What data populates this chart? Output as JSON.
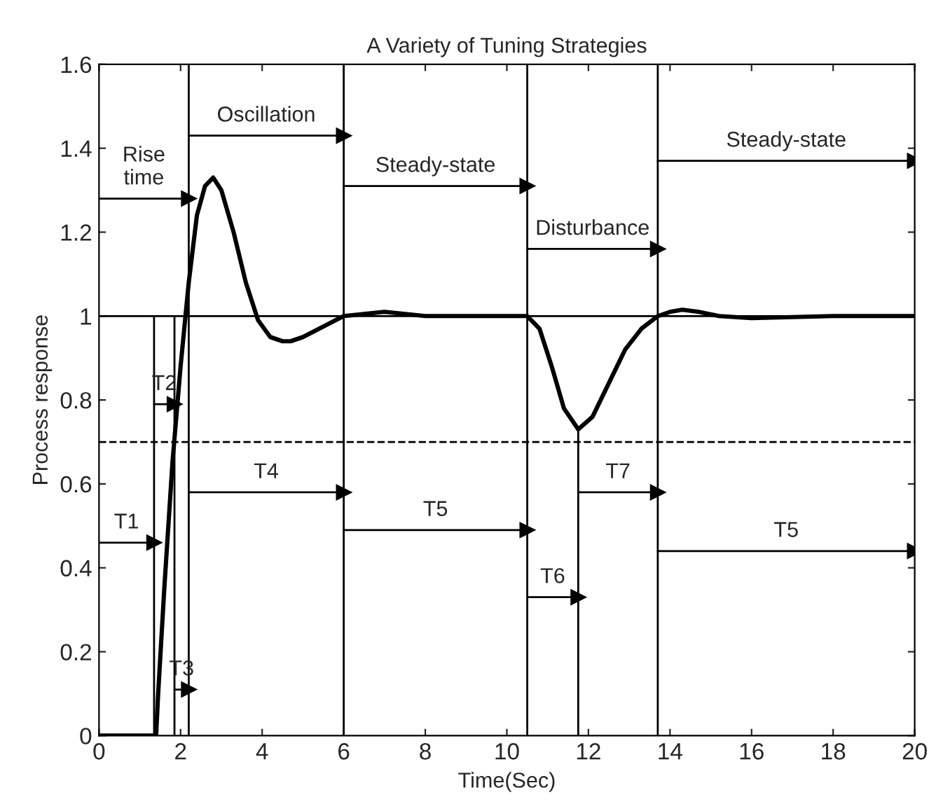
{
  "chart_data": {
    "type": "line",
    "title": "A Variety of Tuning Strategies",
    "xlabel": "Time(Sec)",
    "ylabel": "Process response",
    "xlim": [
      0,
      20
    ],
    "ylim": [
      0,
      1.6
    ],
    "xticks": [
      0,
      2,
      4,
      6,
      8,
      10,
      12,
      14,
      16,
      18,
      20
    ],
    "yticks": [
      0,
      0.2,
      0.4,
      0.6,
      0.8,
      1,
      1.2,
      1.4,
      1.6
    ],
    "grid": false,
    "legend": false,
    "series": [
      {
        "color": "#000000",
        "line_style": "solid",
        "x": [
          0,
          1.4,
          1.45,
          1.6,
          1.8,
          2.0,
          2.2,
          2.4,
          2.6,
          2.8,
          3.0,
          3.3,
          3.6,
          3.9,
          4.2,
          4.5,
          4.7,
          5.0,
          5.4,
          5.8,
          6.0,
          6.5,
          7.0,
          7.5,
          8,
          9,
          10,
          10.5,
          10.8,
          11.1,
          11.4,
          11.75,
          12.1,
          12.5,
          12.9,
          13.3,
          13.7,
          14.0,
          14.3,
          14.7,
          15.2,
          16,
          18,
          20
        ],
        "values": [
          0,
          0,
          0.1,
          0.35,
          0.65,
          0.88,
          1.08,
          1.24,
          1.31,
          1.33,
          1.3,
          1.2,
          1.08,
          0.99,
          0.95,
          0.94,
          0.94,
          0.95,
          0.97,
          0.99,
          1.0,
          1.005,
          1.01,
          1.005,
          1.0,
          1.0,
          1.0,
          1.0,
          0.97,
          0.88,
          0.78,
          0.73,
          0.76,
          0.84,
          0.92,
          0.97,
          1.0,
          1.01,
          1.015,
          1.01,
          1.0,
          0.995,
          1.0,
          1.0
        ]
      },
      {
        "color": "#000000",
        "x": [
          1.35,
          1.35
        ],
        "values": [
          0,
          1
        ]
      },
      {
        "color": "#000000",
        "x": [
          1.85,
          1.85
        ],
        "values": [
          0,
          1
        ]
      },
      {
        "color": "#000000",
        "x": [
          11.75,
          11.75
        ],
        "values": [
          0,
          0.73
        ]
      },
      {
        "color": "#000000",
        "marker": "triangle",
        "x": [
          0,
          2.2
        ],
        "values": [
          1.28,
          1.28
        ]
      },
      {
        "color": "#000000",
        "marker": "triangle",
        "x": [
          2.2,
          6
        ],
        "values": [
          1.43,
          1.43
        ]
      },
      {
        "color": "#000000",
        "marker": "triangle",
        "x": [
          6,
          10.5
        ],
        "values": [
          1.31,
          1.31
        ]
      },
      {
        "color": "#000000",
        "marker": "triangle",
        "x": [
          10.5,
          13.7
        ],
        "values": [
          1.16,
          1.16
        ]
      },
      {
        "color": "#000000",
        "marker": "triangle",
        "x": [
          13.7,
          20
        ],
        "values": [
          1.37,
          1.37
        ]
      },
      {
        "color": "#000000",
        "marker": "triangle",
        "x": [
          0,
          1.35
        ],
        "values": [
          0.46,
          0.46
        ]
      },
      {
        "color": "#000000",
        "marker": "triangle",
        "x": [
          1.35,
          1.85
        ],
        "values": [
          0.79,
          0.79
        ]
      },
      {
        "color": "#000000",
        "marker": "triangle",
        "x": [
          1.85,
          2.2
        ],
        "values": [
          0.11,
          0.11
        ]
      },
      {
        "color": "#000000",
        "marker": "triangle",
        "x": [
          2.2,
          6
        ],
        "values": [
          0.58,
          0.58
        ]
      },
      {
        "color": "#000000",
        "marker": "triangle",
        "x": [
          6,
          10.5
        ],
        "values": [
          0.49,
          0.49
        ]
      },
      {
        "color": "#000000",
        "marker": "triangle",
        "x": [
          10.5,
          11.75
        ],
        "values": [
          0.33,
          0.33
        ]
      },
      {
        "color": "#000000",
        "marker": "triangle",
        "x": [
          11.75,
          13.7
        ],
        "values": [
          0.58,
          0.58
        ]
      },
      {
        "color": "#000000",
        "marker": "triangle",
        "x": [
          13.7,
          20
        ],
        "values": [
          0.44,
          0.44
        ]
      }
    ],
    "ref_lines": [
      {
        "axis": "x",
        "value": 2.2,
        "color": "#000000",
        "line_style": "solid"
      },
      {
        "axis": "x",
        "value": 6,
        "color": "#000000",
        "line_style": "solid"
      },
      {
        "axis": "x",
        "value": 10.5,
        "color": "#000000",
        "line_style": "solid"
      },
      {
        "axis": "x",
        "value": 13.7,
        "color": "#000000",
        "line_style": "solid"
      },
      {
        "axis": "y",
        "value": 1,
        "color": "#000000",
        "line_style": "solid"
      },
      {
        "axis": "y",
        "value": 0.7,
        "color": "#000000",
        "line_style": "dashed"
      }
    ],
    "annotations": [
      "Rise\ntime",
      "Oscillation",
      "Steady-state",
      "Disturbance",
      "Steady-state",
      "T1",
      "T2",
      "T3",
      "T4",
      "T5",
      "T6",
      "T7",
      "T5"
    ]
  }
}
